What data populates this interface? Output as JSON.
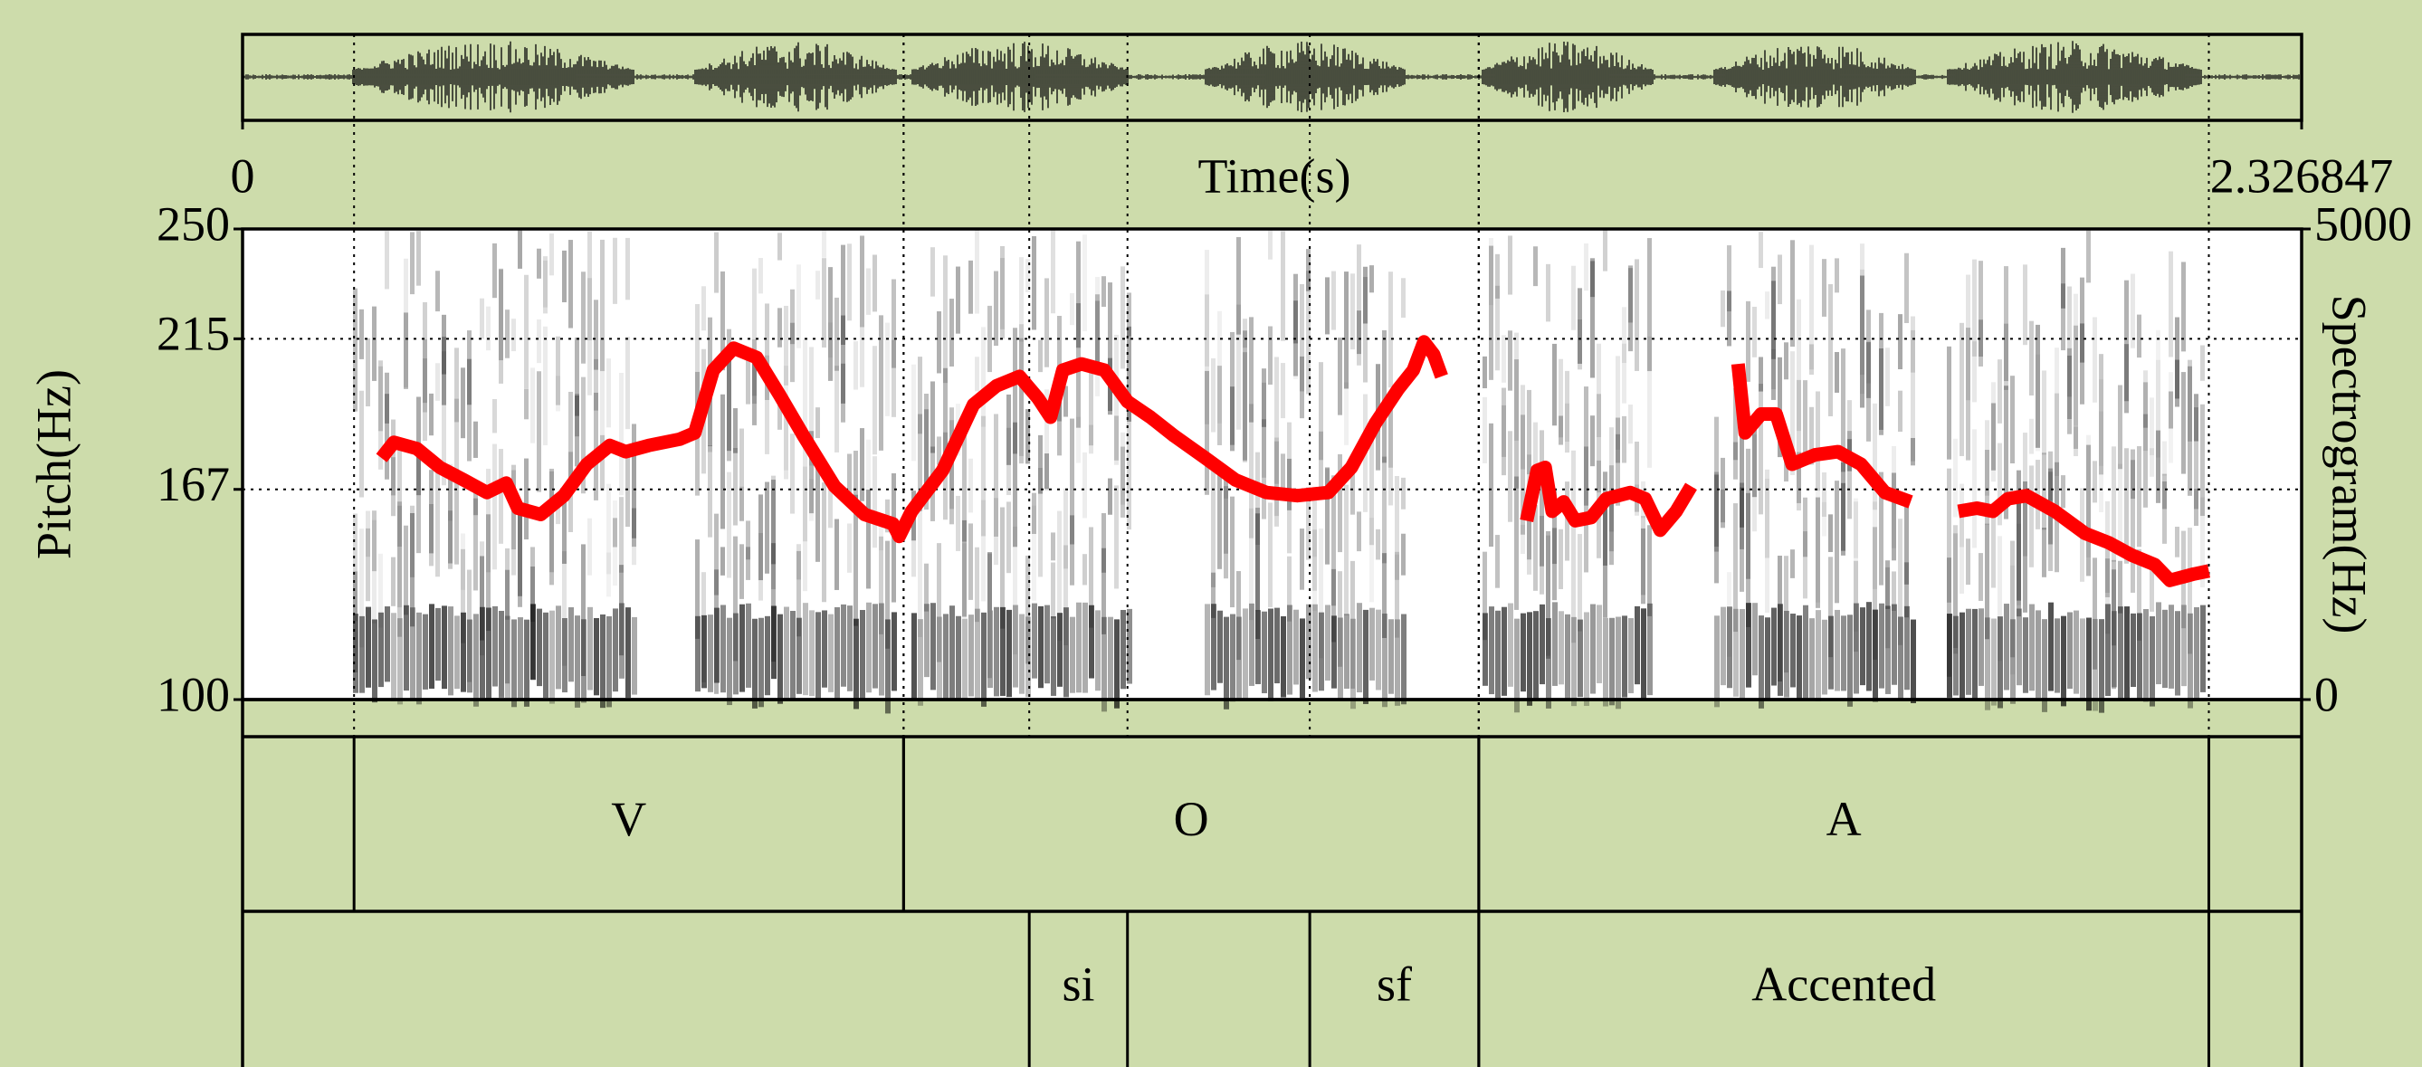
{
  "chart_data": {
    "type": "line",
    "x_label": "Time(s)",
    "y_label": "Pitch(Hz)",
    "y2_label": "Spectrogram(Hz)",
    "xlim": [
      0,
      2.326847
    ],
    "xticks": [
      0,
      2.326847
    ],
    "ylim": [
      100,
      250
    ],
    "yticks": [
      100,
      167,
      215,
      250
    ],
    "y2lim": [
      0,
      5000
    ],
    "y2ticks": [
      0,
      5000
    ],
    "grid": true,
    "color": "#ff0000",
    "x": [
      0.157,
      0.171,
      0.197,
      0.223,
      0.25,
      0.276,
      0.298,
      0.311,
      0.337,
      0.363,
      0.389,
      0.415,
      0.433,
      0.459,
      0.494,
      0.511,
      0.532,
      0.555,
      0.581,
      0.607,
      0.634,
      0.669,
      0.703,
      0.735,
      0.742,
      0.756,
      0.791,
      0.826,
      0.852,
      0.878,
      0.899,
      0.913,
      0.927,
      0.948,
      0.974,
      1.0,
      1.026,
      1.053,
      1.088,
      1.122,
      1.157,
      1.192,
      1.227,
      1.253,
      1.28,
      1.306,
      1.323,
      1.335,
      1.346,
      1.355,
      null,
      1.451,
      1.463,
      1.472,
      1.48,
      1.493,
      1.506,
      1.524,
      1.541,
      1.568,
      1.585,
      1.602,
      1.62,
      1.637,
      null,
      1.69,
      1.698,
      1.716,
      1.733,
      1.751,
      1.777,
      1.803,
      1.829,
      1.856,
      1.885,
      null,
      1.939,
      1.96,
      1.978,
      1.995,
      2.016,
      2.048,
      2.082,
      2.109,
      2.135,
      2.161,
      2.178,
      2.205,
      2.222
    ],
    "values": [
      177,
      182,
      180,
      174,
      170,
      166,
      169,
      161,
      159,
      165,
      175,
      181,
      179,
      181,
      183,
      185,
      205,
      212,
      209,
      197,
      184,
      168,
      159,
      156,
      152,
      160,
      173,
      194,
      200,
      203,
      196,
      190,
      205,
      207,
      205,
      195,
      190,
      184,
      177,
      170,
      166,
      165,
      166,
      174,
      188,
      199,
      205,
      214,
      210,
      203,
      null,
      157,
      173,
      174,
      160,
      163,
      157,
      158,
      164,
      166,
      164,
      154,
      160,
      168,
      null,
      207,
      185,
      191,
      191,
      175,
      178,
      179,
      175,
      166,
      163,
      null,
      160,
      161,
      160,
      164,
      165,
      160,
      153,
      150,
      146,
      143,
      138,
      140,
      141
    ],
    "tiers": [
      {
        "intervals": [
          {
            "start": 0.126,
            "end": 0.747,
            "label": "V"
          },
          {
            "start": 0.747,
            "end": 1.397,
            "label": "O"
          },
          {
            "start": 1.397,
            "end": 2.222,
            "label": "A"
          }
        ]
      },
      {
        "intervals": [
          {
            "start": 0.889,
            "end": 1.0,
            "label": "si"
          },
          {
            "start": 1.206,
            "end": 1.397,
            "label": "sf"
          },
          {
            "start": 1.397,
            "end": 2.222,
            "label": "Accented"
          }
        ]
      }
    ]
  }
}
